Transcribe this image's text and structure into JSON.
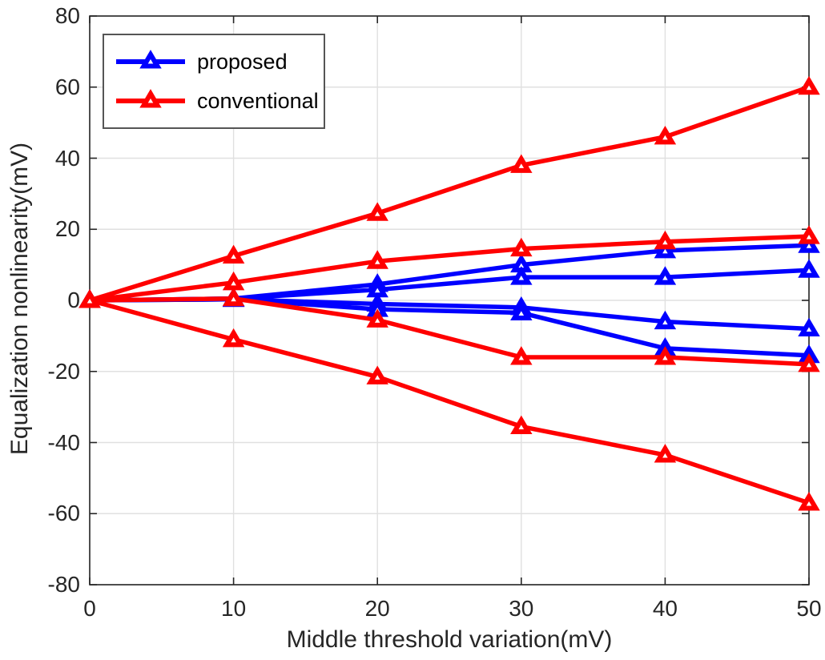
{
  "chart_data": {
    "type": "line",
    "title": "",
    "xlabel": "Middle threshold variation(mV)",
    "ylabel": "Equalization nonlinearity(mV)",
    "xlim": [
      0,
      50
    ],
    "ylim": [
      -80,
      80
    ],
    "xticks": [
      0,
      10,
      20,
      30,
      40,
      50
    ],
    "yticks": [
      -80,
      -60,
      -40,
      -20,
      0,
      20,
      40,
      60,
      80
    ],
    "grid": true,
    "axis_color": "#262626",
    "grid_color": "#e0e0e0",
    "marker": "triangle-up",
    "legend_position": "top-left",
    "x": [
      0,
      10,
      20,
      30,
      40,
      50
    ],
    "series": [
      {
        "name": "proposed",
        "color": "#0000ff",
        "values": [
          0,
          0.5,
          4.5,
          10,
          14,
          15.5
        ]
      },
      {
        "name": "proposed",
        "color": "#0000ff",
        "values": [
          0,
          0.5,
          3,
          6.5,
          6.5,
          8.5
        ]
      },
      {
        "name": "proposed",
        "color": "#0000ff",
        "values": [
          0,
          0.3,
          -1,
          -2,
          -6,
          -8
        ]
      },
      {
        "name": "proposed",
        "color": "#0000ff",
        "values": [
          0,
          0.3,
          -2.5,
          -3.5,
          -13.5,
          -15.5
        ]
      },
      {
        "name": "conventional",
        "color": "#ff0000",
        "values": [
          0,
          12.5,
          24.5,
          38,
          46,
          60
        ]
      },
      {
        "name": "conventional",
        "color": "#ff0000",
        "values": [
          0,
          5,
          11,
          14.5,
          16.5,
          18
        ]
      },
      {
        "name": "conventional",
        "color": "#ff0000",
        "values": [
          0,
          0.5,
          -5.5,
          -16,
          -16,
          -18
        ]
      },
      {
        "name": "conventional",
        "color": "#ff0000",
        "values": [
          0,
          -11,
          -21.5,
          -35.5,
          -43.5,
          -57
        ]
      }
    ]
  },
  "legend": {
    "items": [
      {
        "label": "proposed",
        "color": "#0000ff"
      },
      {
        "label": "conventional",
        "color": "#ff0000"
      }
    ]
  }
}
